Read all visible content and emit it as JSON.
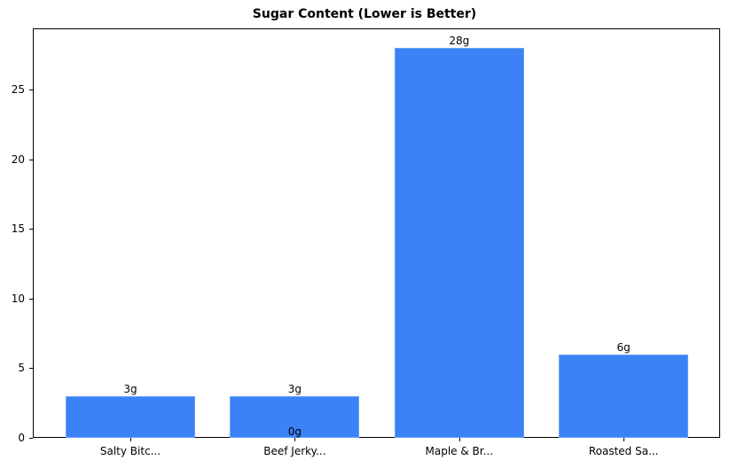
{
  "chart_data": {
    "type": "bar",
    "title": "Sugar Content (Lower is Better)",
    "xlabel": "",
    "ylabel": "",
    "categories": [
      "Salty Bitc...",
      "Beef Jerky...",
      "Maple & Br...",
      "Roasted Sa..."
    ],
    "values": [
      3,
      3,
      28,
      6
    ],
    "value_labels": [
      "3g",
      "3g",
      "28g",
      "6g"
    ],
    "extra_annotations": [
      {
        "text": "0g",
        "category": "Beef Jerky...",
        "value": 0
      }
    ],
    "ylim": [
      0,
      29.4
    ],
    "yticks": [
      0,
      5,
      10,
      15,
      20,
      25
    ],
    "grid": false,
    "legend": null,
    "bar_color": "#3b82f6"
  }
}
